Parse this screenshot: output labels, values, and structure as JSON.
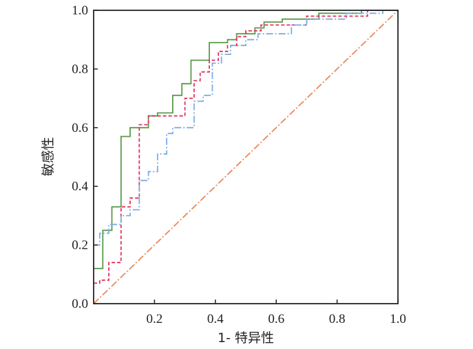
{
  "chart_data": {
    "type": "line",
    "title": "",
    "xlabel": "1- 特异性",
    "ylabel": "敏感性",
    "xlim": [
      0,
      1
    ],
    "ylim": [
      0,
      1
    ],
    "x_ticks": [
      "0.2",
      "0.4",
      "0.6",
      "0.8",
      "1.0"
    ],
    "y_ticks": [
      "0.0",
      "0.2",
      "0.4",
      "0.6",
      "0.8",
      "1.0"
    ],
    "grid": false,
    "legend": "none",
    "series": [
      {
        "color": "#5a9a4a",
        "style": "solid",
        "points": [
          [
            0,
            0.12
          ],
          [
            0.03,
            0.12
          ],
          [
            0.03,
            0.25
          ],
          [
            0.06,
            0.25
          ],
          [
            0.06,
            0.33
          ],
          [
            0.09,
            0.33
          ],
          [
            0.09,
            0.57
          ],
          [
            0.12,
            0.57
          ],
          [
            0.12,
            0.6
          ],
          [
            0.18,
            0.6
          ],
          [
            0.18,
            0.64
          ],
          [
            0.21,
            0.64
          ],
          [
            0.21,
            0.65
          ],
          [
            0.26,
            0.65
          ],
          [
            0.26,
            0.71
          ],
          [
            0.29,
            0.71
          ],
          [
            0.29,
            0.75
          ],
          [
            0.32,
            0.75
          ],
          [
            0.32,
            0.83
          ],
          [
            0.38,
            0.83
          ],
          [
            0.38,
            0.89
          ],
          [
            0.44,
            0.89
          ],
          [
            0.44,
            0.9
          ],
          [
            0.47,
            0.9
          ],
          [
            0.47,
            0.92
          ],
          [
            0.53,
            0.92
          ],
          [
            0.53,
            0.94
          ],
          [
            0.56,
            0.94
          ],
          [
            0.56,
            0.96
          ],
          [
            0.62,
            0.96
          ],
          [
            0.62,
            0.97
          ],
          [
            0.74,
            0.97
          ],
          [
            0.74,
            0.99
          ],
          [
            0.88,
            0.99
          ],
          [
            0.88,
            1.0
          ],
          [
            1,
            1.0
          ]
        ]
      },
      {
        "color": "#e0325a",
        "style": "dashed",
        "points": [
          [
            0,
            0.07
          ],
          [
            0.02,
            0.07
          ],
          [
            0.02,
            0.08
          ],
          [
            0.05,
            0.08
          ],
          [
            0.05,
            0.14
          ],
          [
            0.09,
            0.14
          ],
          [
            0.09,
            0.33
          ],
          [
            0.12,
            0.33
          ],
          [
            0.12,
            0.36
          ],
          [
            0.15,
            0.36
          ],
          [
            0.15,
            0.61
          ],
          [
            0.18,
            0.61
          ],
          [
            0.18,
            0.64
          ],
          [
            0.3,
            0.64
          ],
          [
            0.3,
            0.7
          ],
          [
            0.33,
            0.7
          ],
          [
            0.33,
            0.76
          ],
          [
            0.35,
            0.76
          ],
          [
            0.35,
            0.79
          ],
          [
            0.38,
            0.79
          ],
          [
            0.38,
            0.83
          ],
          [
            0.41,
            0.83
          ],
          [
            0.41,
            0.86
          ],
          [
            0.44,
            0.86
          ],
          [
            0.44,
            0.88
          ],
          [
            0.47,
            0.88
          ],
          [
            0.47,
            0.91
          ],
          [
            0.5,
            0.91
          ],
          [
            0.5,
            0.93
          ],
          [
            0.55,
            0.93
          ],
          [
            0.55,
            0.95
          ],
          [
            0.7,
            0.95
          ],
          [
            0.7,
            0.98
          ],
          [
            0.9,
            0.98
          ],
          [
            0.9,
            1.0
          ],
          [
            1,
            1.0
          ]
        ]
      },
      {
        "color": "#7aaee0",
        "style": "dashdot",
        "points": [
          [
            0,
            0.2
          ],
          [
            0.02,
            0.2
          ],
          [
            0.02,
            0.24
          ],
          [
            0.05,
            0.24
          ],
          [
            0.05,
            0.27
          ],
          [
            0.09,
            0.27
          ],
          [
            0.09,
            0.3
          ],
          [
            0.12,
            0.3
          ],
          [
            0.12,
            0.32
          ],
          [
            0.15,
            0.32
          ],
          [
            0.15,
            0.42
          ],
          [
            0.18,
            0.42
          ],
          [
            0.18,
            0.45
          ],
          [
            0.21,
            0.45
          ],
          [
            0.21,
            0.51
          ],
          [
            0.24,
            0.51
          ],
          [
            0.24,
            0.58
          ],
          [
            0.26,
            0.58
          ],
          [
            0.26,
            0.6
          ],
          [
            0.33,
            0.6
          ],
          [
            0.33,
            0.69
          ],
          [
            0.36,
            0.69
          ],
          [
            0.36,
            0.71
          ],
          [
            0.39,
            0.71
          ],
          [
            0.39,
            0.82
          ],
          [
            0.42,
            0.82
          ],
          [
            0.42,
            0.85
          ],
          [
            0.45,
            0.85
          ],
          [
            0.45,
            0.88
          ],
          [
            0.5,
            0.88
          ],
          [
            0.5,
            0.9
          ],
          [
            0.54,
            0.9
          ],
          [
            0.54,
            0.92
          ],
          [
            0.65,
            0.92
          ],
          [
            0.65,
            0.95
          ],
          [
            0.7,
            0.95
          ],
          [
            0.7,
            0.97
          ],
          [
            0.83,
            0.97
          ],
          [
            0.83,
            0.99
          ],
          [
            0.95,
            0.99
          ],
          [
            0.95,
            1.0
          ],
          [
            1,
            1.0
          ]
        ]
      },
      {
        "color": "#e8885a",
        "style": "dashdot",
        "points": [
          [
            0,
            0
          ],
          [
            1,
            1
          ]
        ]
      }
    ]
  }
}
